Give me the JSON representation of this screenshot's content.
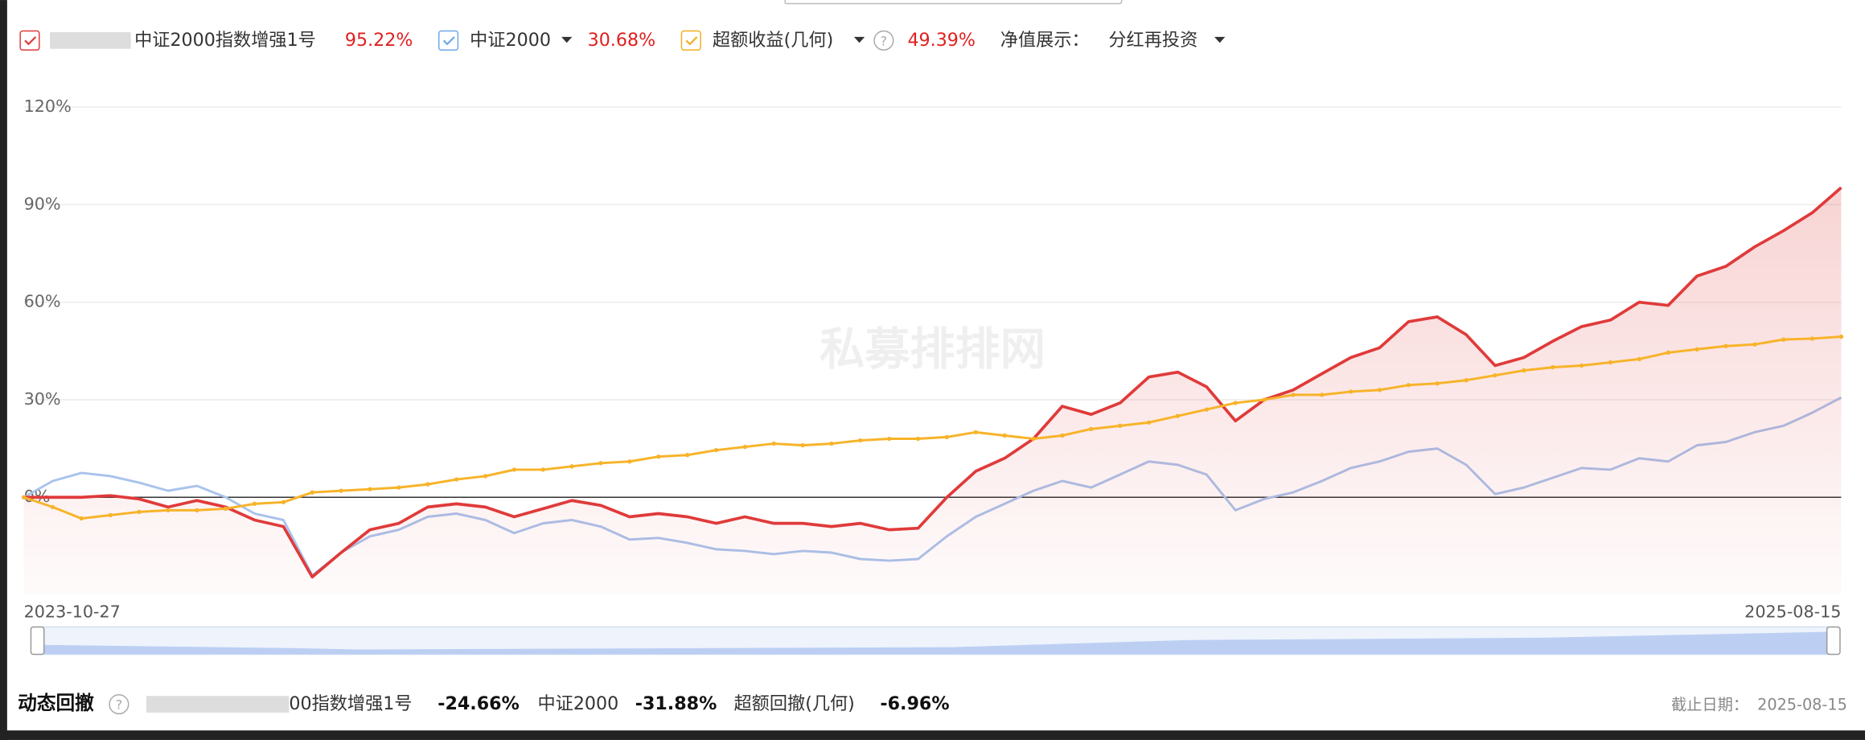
{
  "chart_data": {
    "type": "line",
    "categories": [
      "2023-10-27",
      null,
      null,
      null,
      null,
      null,
      null,
      null,
      null,
      null,
      null,
      null,
      null,
      null,
      null,
      null,
      null,
      null,
      null,
      null,
      null,
      null,
      null,
      null,
      null,
      null,
      null,
      null,
      null,
      null,
      null,
      null,
      null,
      null,
      null,
      null,
      null,
      null,
      null,
      null,
      null,
      null,
      null,
      null,
      null,
      null,
      null,
      null,
      null,
      null,
      null,
      null,
      null,
      null,
      null,
      null,
      null,
      null,
      null,
      null,
      null,
      null,
      null,
      "2025-08-15"
    ],
    "series": [
      {
        "name": "中证2000指数增强1号",
        "color": "#e03a3a",
        "total_label": "95.22%",
        "values": [
          0,
          0,
          0,
          0.5,
          -0.5,
          -3,
          -1,
          -3,
          -7,
          -9,
          -24.5,
          -17,
          -10,
          -8,
          -3,
          -2,
          -3,
          -6,
          -3.5,
          -1,
          -2.5,
          -6,
          -5,
          -6,
          -8,
          -6,
          -8,
          -8,
          -9,
          -8,
          -10,
          -9.5,
          0,
          8,
          12,
          18,
          28,
          25.5,
          29,
          37,
          38.5,
          34,
          23.5,
          30,
          33,
          38,
          43,
          46,
          54,
          55.5,
          50,
          40.5,
          43,
          48,
          52.5,
          54.5,
          60,
          59,
          68,
          71,
          77,
          82,
          87.5,
          95.22
        ]
      },
      {
        "name": "中证2000",
        "color": "#a9c3ec",
        "total_label": "30.68%",
        "values": [
          0,
          5,
          7.5,
          6.5,
          4.5,
          2,
          3.5,
          0,
          -5,
          -7,
          -24,
          -17,
          -12,
          -10,
          -6,
          -5,
          -7,
          -11,
          -8,
          -7,
          -9,
          -13,
          -12.5,
          -14,
          -16,
          -16.5,
          -17.5,
          -16.5,
          -17,
          -19,
          -19.5,
          -19,
          -12,
          -6,
          -2,
          2,
          5,
          3,
          7,
          11,
          10,
          7,
          -4,
          -0.5,
          1.5,
          5,
          9,
          11,
          14,
          15,
          10,
          1,
          3,
          6,
          9,
          8.5,
          12,
          11,
          16,
          17,
          20,
          22,
          26,
          30.68
        ]
      },
      {
        "name": "超额收益(几何)",
        "color": "#f7b329",
        "total_label": "49.39%",
        "values": [
          0,
          -3,
          -6.5,
          -5.5,
          -4.5,
          -4,
          -4,
          -3.5,
          -2,
          -1.5,
          1.5,
          2,
          2.5,
          3,
          4,
          5.5,
          6.5,
          8.5,
          8.5,
          9.5,
          10.5,
          11,
          12.5,
          13,
          14.5,
          15.5,
          16.5,
          16,
          16.5,
          17.5,
          18,
          18,
          18.5,
          20,
          19,
          18,
          19,
          21,
          22,
          23,
          25,
          27,
          29,
          30,
          31.5,
          31.5,
          32.5,
          33,
          34.5,
          35,
          36,
          37.5,
          39,
          40,
          40.5,
          41.5,
          42.5,
          44.5,
          45.5,
          46.5,
          47,
          48.5,
          48.8,
          49.39
        ]
      }
    ],
    "ylim": [
      -30,
      120
    ],
    "yticks": [
      {
        "value": 0,
        "label": "0%"
      },
      {
        "value": 30,
        "label": "30%"
      },
      {
        "value": 60,
        "label": "60%"
      },
      {
        "value": 90,
        "label": "90%"
      },
      {
        "value": 120,
        "label": "120%"
      }
    ],
    "grid": true
  },
  "controls": {
    "display_label": "净值展示：",
    "display_option": "分红再投资",
    "watermark": "私募排排网"
  },
  "drawdown": {
    "title": "动态回撤",
    "items": [
      {
        "name": "00指数增强1号",
        "value": "-24.66%"
      },
      {
        "name": "中证2000",
        "value": "-31.88%"
      },
      {
        "name": "超额回撤(几何)",
        "value": "-6.96%"
      }
    ],
    "date_label": "截止日期：",
    "date": "2025-08-15"
  }
}
